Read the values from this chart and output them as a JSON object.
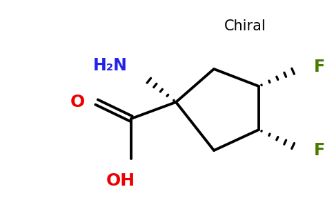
{
  "background_color": "#ffffff",
  "chiral_label": "Chiral",
  "chiral_color": "#000000",
  "chiral_fontsize": 15,
  "nh2_label": "H₂N",
  "nh2_color": "#2222ee",
  "nh2_fontsize": 17,
  "o_label": "O",
  "o_color": "#ee0000",
  "o_fontsize": 18,
  "oh_label": "OH",
  "oh_color": "#ee0000",
  "oh_fontsize": 18,
  "f1_label": "F",
  "f1_color": "#4a7a00",
  "f1_fontsize": 17,
  "f2_label": "F",
  "f2_color": "#4a7a00",
  "f2_fontsize": 17,
  "line_color": "#000000",
  "line_width": 2.8
}
